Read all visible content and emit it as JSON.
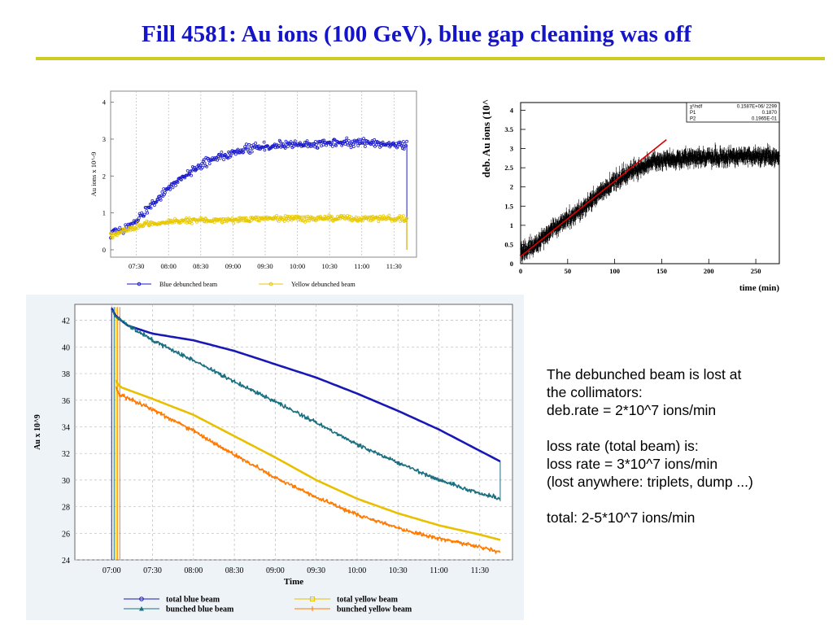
{
  "slide": {
    "title": "Fill 4581: Au ions (100 GeV), blue gap cleaning was off",
    "colors": {
      "title": "#1414c8",
      "rule": "#cccc22"
    }
  },
  "notes": [
    "The debunched beam is lost at",
    "the collimators:",
    "deb.rate = 2*10^7 ions/min",
    "",
    "loss rate (total beam) is:",
    "loss rate = 3*10^7 ions/min",
    "(lost anywhere: triplets, dump ...)",
    "",
    "total: 2-5*10^7 ions/min"
  ],
  "chart_data": [
    {
      "type": "scatter",
      "ylabel": "Au ions x 10^-9",
      "xlabel": "",
      "x_ticks": [
        "07:30",
        "08:00",
        "08:30",
        "09:00",
        "09:30",
        "10:00",
        "10:30",
        "11:00",
        "11:30"
      ],
      "y_ticks": [
        0,
        1,
        2,
        3,
        4
      ],
      "xlim_hours": [
        7.1,
        11.85
      ],
      "ylim": [
        -0.2,
        4.3
      ],
      "grid": true,
      "legend": "bottom",
      "series": [
        {
          "name": "Blue debunched beam",
          "color": "#1a1acc",
          "x_hours": [
            7.1,
            7.3,
            7.5,
            7.75,
            8.0,
            8.25,
            8.5,
            8.75,
            9.0,
            9.25,
            9.5,
            9.75,
            10.0,
            10.5,
            11.0,
            11.5,
            11.7
          ],
          "values": [
            0.45,
            0.55,
            0.8,
            1.25,
            1.65,
            2.0,
            2.3,
            2.5,
            2.65,
            2.75,
            2.8,
            2.85,
            2.85,
            2.88,
            2.9,
            2.85,
            2.8
          ]
        },
        {
          "name": "Yellow debunched beam",
          "color": "#e8c800",
          "x_hours": [
            7.1,
            7.3,
            7.5,
            7.75,
            8.0,
            8.5,
            9.0,
            9.5,
            10.0,
            10.5,
            11.0,
            11.5,
            11.7
          ],
          "values": [
            0.4,
            0.5,
            0.62,
            0.7,
            0.75,
            0.8,
            0.82,
            0.85,
            0.85,
            0.85,
            0.85,
            0.85,
            0.85
          ]
        }
      ]
    },
    {
      "type": "scatter",
      "ylabel": "deb. Au ions (10^",
      "xlabel": "time (min)",
      "x_ticks": [
        0,
        50,
        100,
        150,
        200,
        250
      ],
      "y_ticks": [
        0,
        0.5,
        1,
        1.5,
        2,
        2.5,
        3,
        3.5,
        4
      ],
      "xlim": [
        0,
        275
      ],
      "ylim": [
        0,
        4.2
      ],
      "stats": [
        {
          "label": "χ²/ndf",
          "value": "0.1587E+06/  2299"
        },
        {
          "label": "P1",
          "value": "0.1870"
        },
        {
          "label": "P2",
          "value": "0.1965E-01"
        }
      ],
      "fit": {
        "color": "#dd0000",
        "x": [
          0,
          155
        ],
        "y": [
          0.187,
          3.233
        ]
      },
      "series": [
        {
          "name": "",
          "color": "#000000",
          "x": [
            0,
            20,
            40,
            60,
            80,
            100,
            120,
            140,
            160,
            180,
            200,
            230,
            260,
            275
          ],
          "y": [
            0.25,
            0.6,
            1.0,
            1.3,
            1.75,
            2.15,
            2.45,
            2.65,
            2.72,
            2.75,
            2.78,
            2.8,
            2.8,
            2.8
          ]
        }
      ]
    },
    {
      "type": "line",
      "ylabel": "Au x 10^9",
      "xlabel": "Time",
      "x_ticks": [
        "07:00",
        "07:30",
        "08:00",
        "08:30",
        "09:00",
        "09:30",
        "10:00",
        "10:30",
        "11:00",
        "11:30"
      ],
      "y_ticks": [
        24,
        26,
        28,
        30,
        32,
        34,
        36,
        38,
        40,
        42
      ],
      "xlim_hours": [
        6.55,
        11.9
      ],
      "ylim": [
        24,
        43.2
      ],
      "grid": true,
      "legend": "bottom",
      "series": [
        {
          "name": "total blue beam",
          "color": "#1818b4",
          "x_hours": [
            7.0,
            7.05,
            7.2,
            7.5,
            8.0,
            8.5,
            9.0,
            9.5,
            10.0,
            10.5,
            11.0,
            11.5,
            11.75
          ],
          "values": [
            42.9,
            42.3,
            41.6,
            41.0,
            40.5,
            39.7,
            38.7,
            37.7,
            36.5,
            35.2,
            33.8,
            32.2,
            31.4
          ]
        },
        {
          "name": "bunched blue beam",
          "color": "#1a7080",
          "x_hours": [
            7.0,
            7.05,
            7.2,
            7.5,
            8.0,
            8.5,
            9.0,
            9.5,
            10.0,
            10.5,
            11.0,
            11.5,
            11.75
          ],
          "values": [
            42.8,
            42.3,
            41.6,
            40.5,
            39.0,
            37.4,
            35.9,
            34.3,
            32.7,
            31.3,
            30.0,
            29.0,
            28.6
          ]
        },
        {
          "name": "total yellow beam",
          "color": "#e8c000",
          "x_hours": [
            7.05,
            7.1,
            7.5,
            8.0,
            8.5,
            9.0,
            9.5,
            10.0,
            10.5,
            11.0,
            11.5,
            11.75
          ],
          "values": [
            37.5,
            37.0,
            36.1,
            34.9,
            33.3,
            31.7,
            30.0,
            28.6,
            27.5,
            26.6,
            25.9,
            25.5
          ]
        },
        {
          "name": "bunched yellow beam",
          "color": "#ff7a00",
          "x_hours": [
            7.05,
            7.1,
            7.5,
            8.0,
            8.5,
            9.0,
            9.5,
            10.0,
            10.5,
            11.0,
            11.5,
            11.75
          ],
          "values": [
            37.0,
            36.4,
            35.3,
            33.7,
            31.9,
            30.2,
            28.7,
            27.4,
            26.4,
            25.6,
            25.0,
            24.6
          ]
        }
      ]
    }
  ]
}
